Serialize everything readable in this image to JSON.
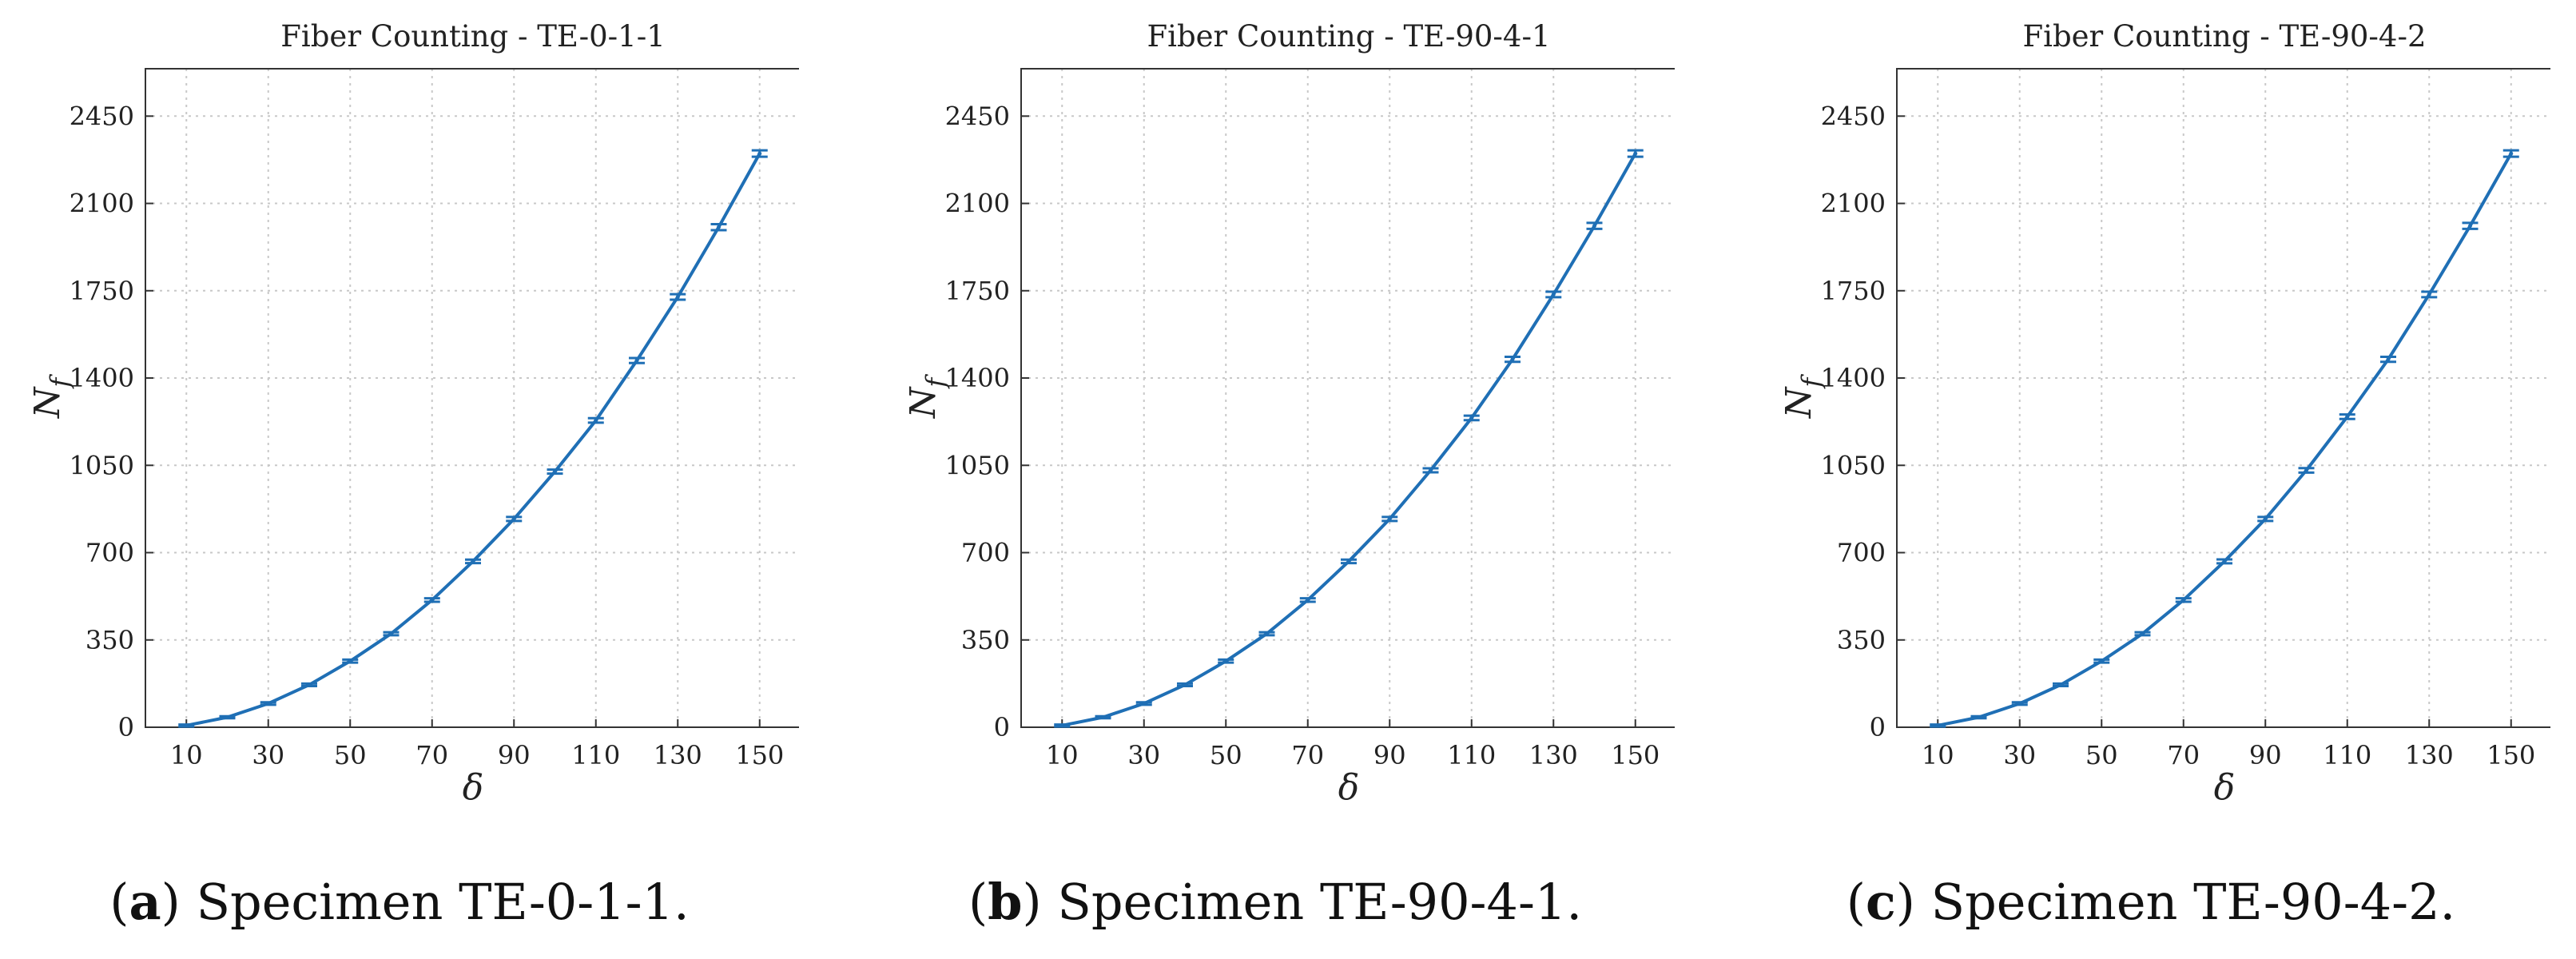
{
  "chart_data": [
    {
      "type": "line",
      "title": "Fiber Counting - TE-0-1-1",
      "xlabel": "δ",
      "ylabel_main": "N",
      "ylabel_sub": "f",
      "x": [
        10,
        20,
        30,
        40,
        50,
        60,
        70,
        80,
        90,
        100,
        110,
        120,
        130,
        140,
        150
      ],
      "values": [
        7,
        40,
        95,
        170,
        265,
        375,
        510,
        665,
        835,
        1025,
        1230,
        1470,
        1725,
        2005,
        2300
      ],
      "error": [
        4,
        4,
        5,
        5,
        6,
        6,
        7,
        7,
        8,
        8,
        9,
        10,
        11,
        12,
        13
      ],
      "xlim": [
        0,
        160
      ],
      "ylim": [
        0,
        2640
      ],
      "xticks": [
        10,
        30,
        50,
        70,
        90,
        110,
        130,
        150
      ],
      "yticks": [
        0,
        350,
        700,
        1050,
        1400,
        1750,
        2100,
        2450
      ],
      "grid": true,
      "color": "#1f6fb5",
      "caption_letter": "a",
      "caption_text": "Specimen TE-0-1-1."
    },
    {
      "type": "line",
      "title": "Fiber Counting - TE-90-4-1",
      "xlabel": "δ",
      "ylabel_main": "N",
      "ylabel_sub": "f",
      "x": [
        10,
        20,
        30,
        40,
        50,
        60,
        70,
        80,
        90,
        100,
        110,
        120,
        130,
        140,
        150
      ],
      "values": [
        7,
        40,
        95,
        170,
        265,
        375,
        510,
        665,
        835,
        1030,
        1240,
        1475,
        1735,
        2010,
        2300
      ],
      "error": [
        4,
        4,
        5,
        5,
        6,
        6,
        7,
        7,
        8,
        8,
        9,
        10,
        11,
        12,
        13
      ],
      "xlim": [
        0,
        160
      ],
      "ylim": [
        0,
        2640
      ],
      "xticks": [
        10,
        30,
        50,
        70,
        90,
        110,
        130,
        150
      ],
      "yticks": [
        0,
        350,
        700,
        1050,
        1400,
        1750,
        2100,
        2450
      ],
      "grid": true,
      "color": "#1f6fb5",
      "caption_letter": "b",
      "caption_text": "Specimen TE-90-4-1."
    },
    {
      "type": "line",
      "title": "Fiber Counting - TE-90-4-2",
      "xlabel": "δ",
      "ylabel_main": "N",
      "ylabel_sub": "f",
      "x": [
        10,
        20,
        30,
        40,
        50,
        60,
        70,
        80,
        90,
        100,
        110,
        120,
        130,
        140,
        150
      ],
      "values": [
        7,
        40,
        95,
        170,
        265,
        375,
        510,
        665,
        835,
        1030,
        1245,
        1475,
        1735,
        2010,
        2300
      ],
      "error": [
        4,
        4,
        5,
        5,
        6,
        6,
        7,
        8,
        8,
        9,
        9,
        10,
        11,
        12,
        13
      ],
      "xlim": [
        0,
        160
      ],
      "ylim": [
        0,
        2640
      ],
      "xticks": [
        10,
        30,
        50,
        70,
        90,
        110,
        130,
        150
      ],
      "yticks": [
        0,
        350,
        700,
        1050,
        1400,
        1750,
        2100,
        2450
      ],
      "grid": true,
      "color": "#1f6fb5",
      "caption_letter": "c",
      "caption_text": "Specimen TE-90-4-2."
    }
  ]
}
